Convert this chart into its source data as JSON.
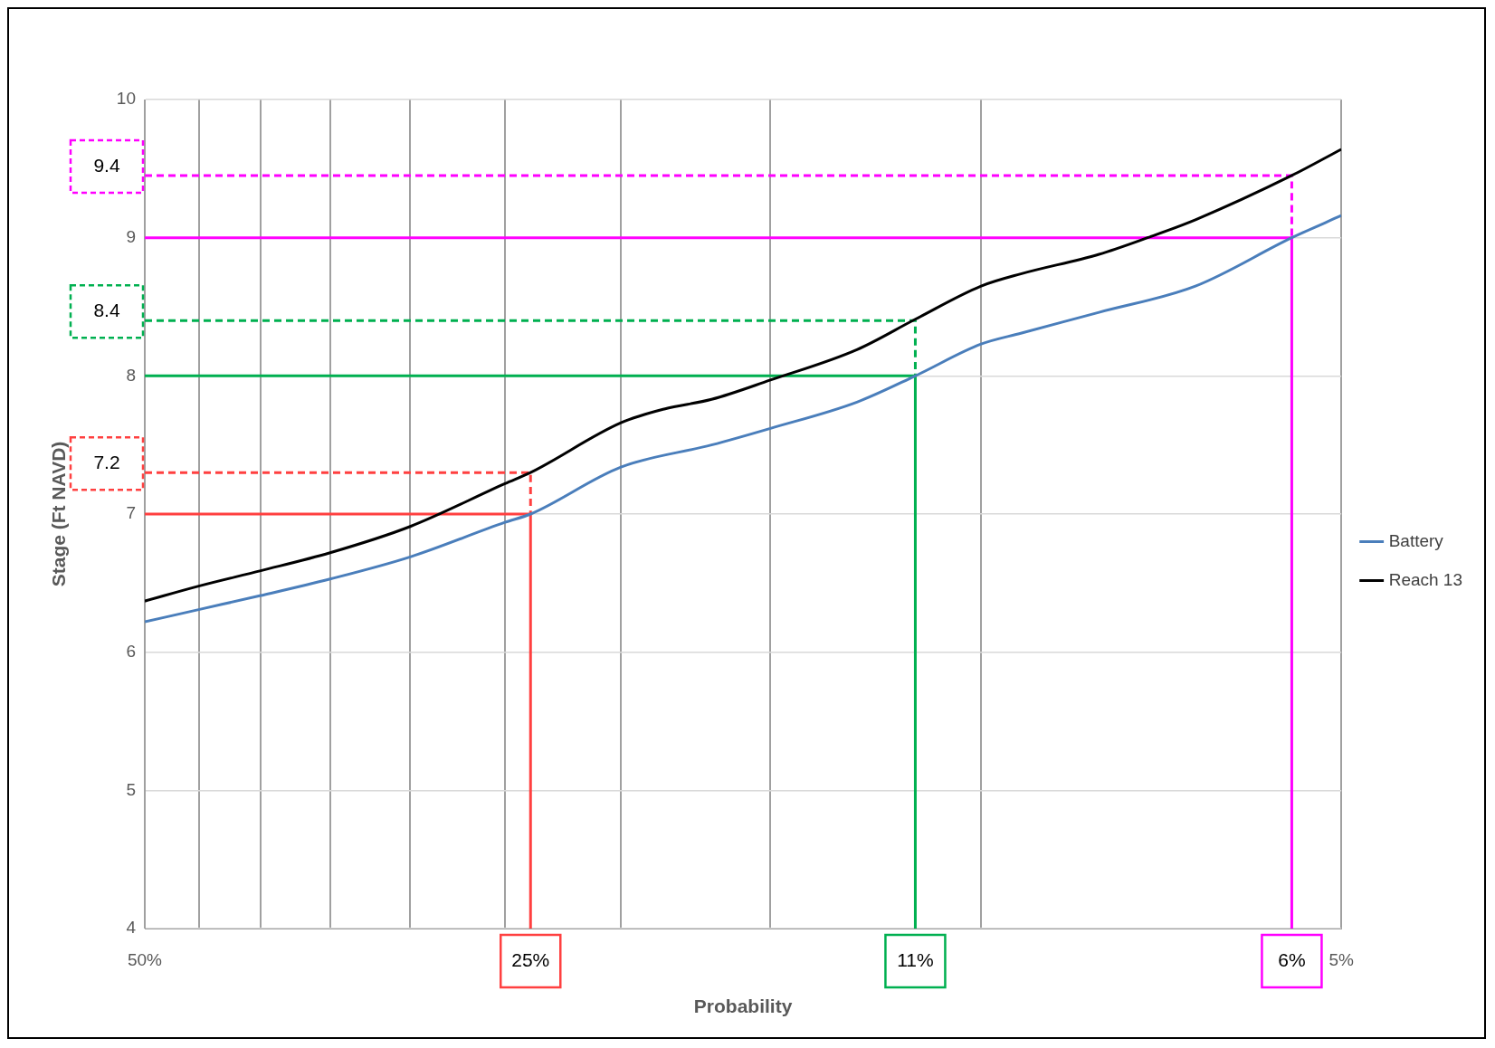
{
  "chart_data": {
    "type": "line",
    "xlabel": "Probability",
    "ylabel": "Stage (Ft NAVD)",
    "log": "x",
    "xlim": [
      50,
      5
    ],
    "xticks": [
      {
        "value": 50,
        "label": "50%"
      },
      {
        "value": 45,
        "label": null
      },
      {
        "value": 40,
        "label": null
      },
      {
        "value": 35,
        "label": null
      },
      {
        "value": 30,
        "label": null
      },
      {
        "value": 25,
        "label": null
      },
      {
        "value": 20,
        "label": null
      },
      {
        "value": 15,
        "label": null
      },
      {
        "value": 10,
        "label": null
      },
      {
        "value": 5,
        "label": "5%"
      }
    ],
    "ylim": [
      4,
      10
    ],
    "yticks": [
      4,
      5,
      6,
      7,
      8,
      9,
      10
    ],
    "grid": true,
    "legend": "right",
    "marker": "none",
    "series": [
      {
        "name": "Battery",
        "color": "#4a7ebb",
        "x": [
          50,
          45,
          40,
          35,
          30,
          25,
          23.8,
          20,
          16.8,
          15,
          12.7,
          11.35,
          10,
          9.25,
          7.97,
          6.62,
          5.5,
          5
        ],
        "values": [
          6.22,
          6.31,
          6.41,
          6.53,
          6.69,
          6.94,
          7.0,
          7.34,
          7.5,
          7.62,
          7.81,
          8.0,
          8.23,
          8.31,
          8.46,
          8.65,
          9.0,
          9.16
        ]
      },
      {
        "name": "Reach 13",
        "color": "#000000",
        "x": [
          50,
          45,
          40,
          35,
          30,
          25,
          23.8,
          20,
          18.4,
          16.8,
          15,
          12.7,
          11.35,
          10,
          9.25,
          7.97,
          7.26,
          6.62,
          5.5,
          5
        ],
        "values": [
          6.37,
          6.48,
          6.59,
          6.72,
          6.91,
          7.22,
          7.3,
          7.66,
          7.76,
          7.83,
          7.97,
          8.19,
          8.41,
          8.65,
          8.74,
          8.88,
          9.0,
          9.13,
          9.45,
          9.64
        ]
      },
      {
        "color": "#ff4040",
        "line_style": "solid",
        "x": [
          50,
          23.8,
          23.8
        ],
        "values": [
          7.0,
          7.0,
          4
        ]
      },
      {
        "color": "#ff4040",
        "line_style": "dashed",
        "x": [
          50,
          23.8,
          23.8
        ],
        "values": [
          7.3,
          7.3,
          7.0
        ]
      },
      {
        "color": "#00b050",
        "line_style": "solid",
        "x": [
          50,
          11.35,
          11.35
        ],
        "values": [
          8.0,
          8.0,
          4
        ]
      },
      {
        "color": "#00b050",
        "line_style": "dashed",
        "x": [
          50,
          11.35,
          11.35
        ],
        "values": [
          8.4,
          8.4,
          8.0
        ]
      },
      {
        "color": "#ff00ff",
        "line_style": "solid",
        "x": [
          50,
          5.5,
          5.5
        ],
        "values": [
          9.0,
          9.0,
          4
        ]
      },
      {
        "color": "#ff00ff",
        "line_style": "dashed",
        "x": [
          50,
          5.5,
          5.5
        ],
        "values": [
          9.45,
          9.45,
          9.0
        ]
      }
    ],
    "annotations": [
      "7.2",
      "25%",
      "8.4",
      "11%",
      "9.4",
      "6%"
    ]
  }
}
